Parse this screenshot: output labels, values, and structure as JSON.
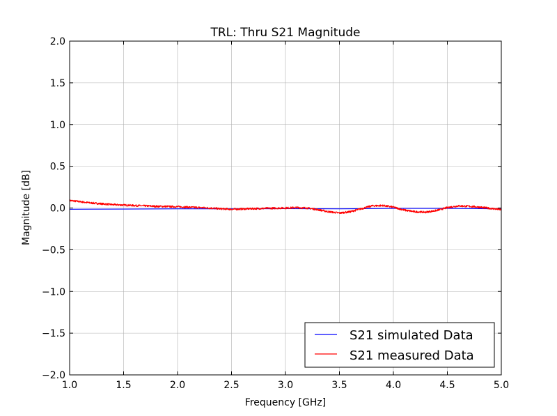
{
  "chart_data": {
    "type": "line",
    "title": "TRL: Thru S21 Magnitude",
    "xlabel": "Frequency [GHz]",
    "ylabel": "Magnitude [dB]",
    "xlim": [
      1.0,
      5.0
    ],
    "ylim": [
      -2.0,
      2.0
    ],
    "xticks": [
      "1.0",
      "1.5",
      "2.0",
      "2.5",
      "3.0",
      "3.5",
      "4.0",
      "4.5",
      "5.0"
    ],
    "yticks": [
      "2.0",
      "1.5",
      "1.0",
      "0.5",
      "0.0",
      "−0.5",
      "−1.0",
      "−1.5",
      "−2.0"
    ],
    "grid": true,
    "legend_position": "lower-right",
    "series": [
      {
        "name": "S21 simulated Data",
        "color": "#0000ff",
        "x": [
          1.0,
          1.5,
          2.0,
          2.5,
          3.0,
          3.5,
          4.0,
          4.5,
          5.0
        ],
        "values": [
          -0.015,
          -0.013,
          -0.01,
          -0.01,
          -0.008,
          -0.01,
          -0.005,
          -0.005,
          -0.01
        ]
      },
      {
        "name": "S21 measured Data",
        "color": "#ff0000",
        "x": [
          1.0,
          1.1,
          1.2,
          1.3,
          1.4,
          1.5,
          1.6,
          1.7,
          1.8,
          1.9,
          2.0,
          2.1,
          2.2,
          2.3,
          2.4,
          2.5,
          2.6,
          2.7,
          2.8,
          2.9,
          3.0,
          3.1,
          3.2,
          3.3,
          3.4,
          3.5,
          3.6,
          3.7,
          3.8,
          3.9,
          4.0,
          4.1,
          4.2,
          4.3,
          4.4,
          4.5,
          4.6,
          4.7,
          4.8,
          4.9,
          5.0
        ],
        "values": [
          0.09,
          0.075,
          0.06,
          0.05,
          0.04,
          0.035,
          0.03,
          0.025,
          0.02,
          0.018,
          0.015,
          0.01,
          0.005,
          0.0,
          -0.01,
          -0.015,
          -0.012,
          -0.008,
          -0.005,
          -0.002,
          0.0,
          0.005,
          0.0,
          -0.02,
          -0.045,
          -0.06,
          -0.045,
          -0.01,
          0.025,
          0.03,
          0.01,
          -0.025,
          -0.045,
          -0.05,
          -0.03,
          0.005,
          0.025,
          0.02,
          0.01,
          -0.005,
          -0.02
        ]
      }
    ]
  }
}
